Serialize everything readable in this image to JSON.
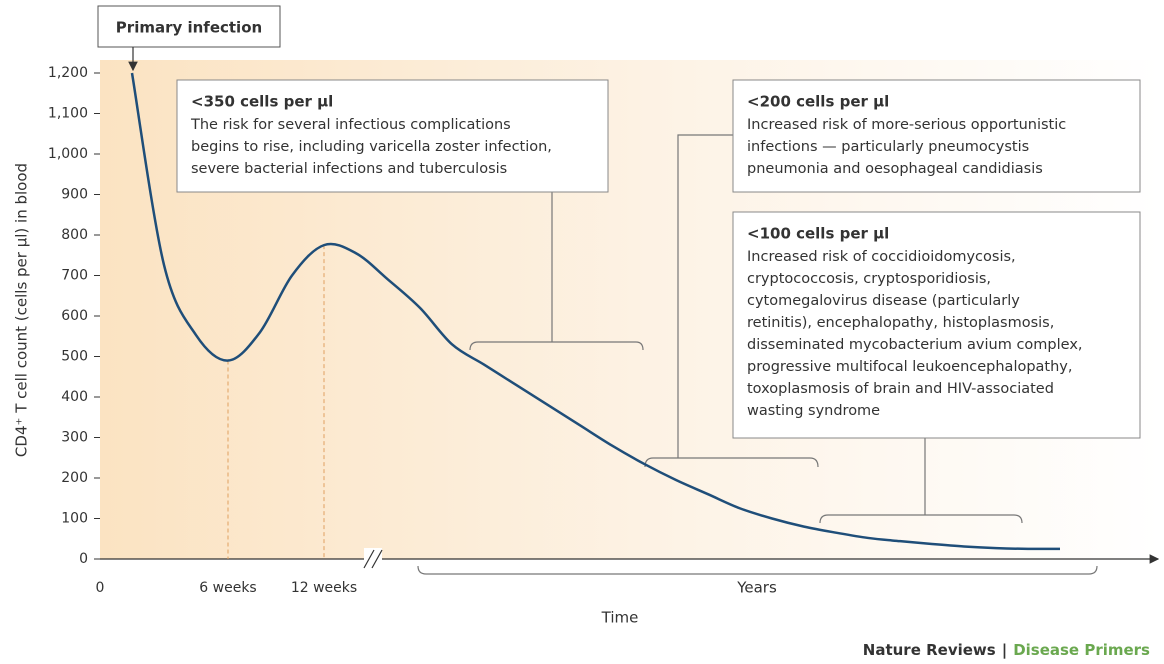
{
  "chart_data": {
    "type": "line",
    "x_label": "Time",
    "y_label": "CD4⁺ T cell count (cells per μl) in blood",
    "categories": [
      "0",
      null,
      null,
      null,
      "6 weeks",
      null,
      null,
      "12 weeks",
      null,
      null,
      null,
      null,
      null,
      null,
      null,
      null,
      null,
      null,
      null,
      null,
      null,
      null,
      null,
      null,
      null,
      null,
      null,
      null,
      null,
      null,
      null
    ],
    "series": [
      {
        "name": null,
        "color": "#1f4e79",
        "values": [
          null,
          1200,
          726,
          553,
          490,
          560,
          700,
          775,
          755,
          690,
          620,
          530,
          480,
          430,
          380,
          330,
          280,
          235,
          195,
          160,
          125,
          100,
          80,
          65,
          52,
          44,
          37,
          31,
          27,
          25,
          25
        ]
      }
    ],
    "ylim": [
      0,
      1200
    ],
    "yticks": [
      0,
      100,
      200,
      300,
      400,
      500,
      600,
      700,
      800,
      900,
      {
        "value": 1000,
        "label": "1,000"
      },
      {
        "value": 1100,
        "label": "1,100"
      },
      {
        "value": 1200,
        "label": "1,200"
      }
    ],
    "start_label": "Primary infection",
    "years_label": "Years",
    "annotations": [
      {
        "title": "<350 cells per μl",
        "lines": [
          "The risk for several infectious complications",
          "begins to rise, including varicella zoster infection,",
          "severe bacterial infections and tuberculosis"
        ]
      },
      {
        "title": "<200 cells per μl",
        "lines": [
          "Increased risk of more-serious opportunistic",
          "infections — particularly pneumocystis",
          "pneumonia and oesophageal candidiasis"
        ]
      },
      {
        "title": "<100 cells per μl",
        "lines": [
          "Increased risk of coccidioidomycosis,",
          "cryptococcosis, cryptosporidiosis,",
          "cytomegalovirus disease (particularly",
          "retinitis), encephalopathy, histoplasmosis,",
          "disseminated mycobacterium avium complex,",
          "progressive multifocal leukoencephalopathy,",
          "toxoplasmosis of brain and HIV-associated",
          "wasting syndrome"
        ]
      }
    ],
    "footer": {
      "left": "Nature Reviews",
      "separator": "|",
      "right": "Disease Primers"
    }
  }
}
